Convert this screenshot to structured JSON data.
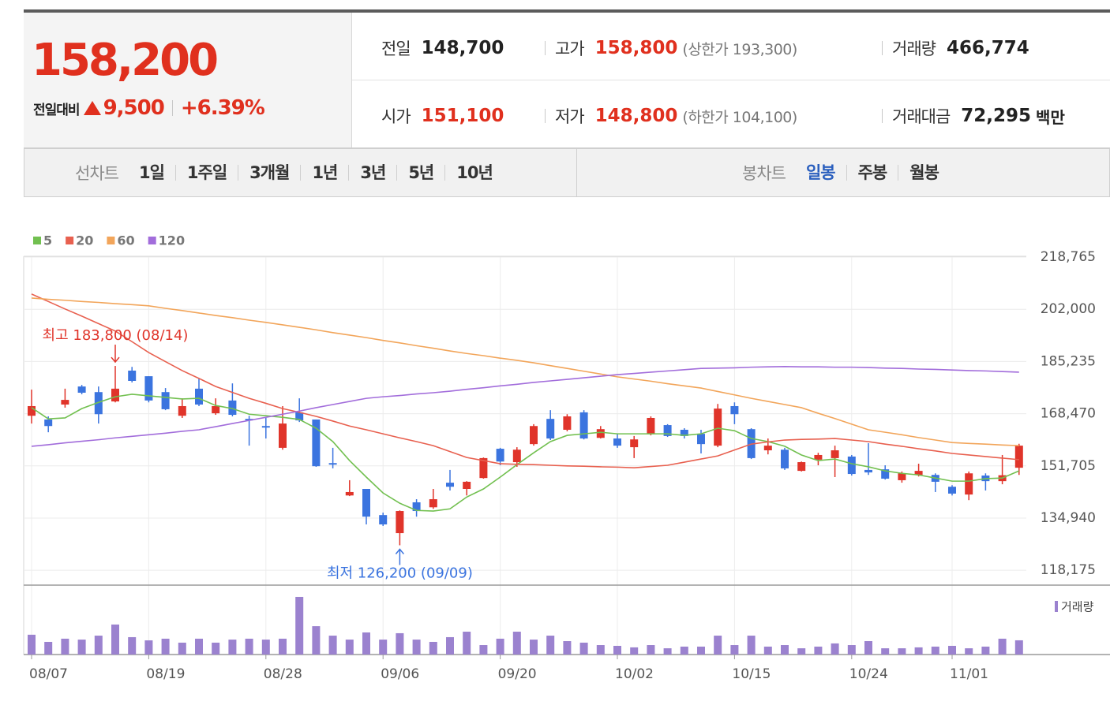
{
  "header": {
    "price": "158,200",
    "change_label": "전일대비",
    "change": "9,500",
    "change_pct": "+6.39%",
    "stats": [
      {
        "label": "전일",
        "value": "148,700",
        "color": "#222222"
      },
      {
        "label": "고가",
        "value": "158,800",
        "color": "#e0301e",
        "note": "(상한가 193,300)"
      },
      {
        "label": "거래량",
        "value": "466,774",
        "color": "#222222"
      },
      {
        "label": "시가",
        "value": "151,100",
        "color": "#e0301e"
      },
      {
        "label": "저가",
        "value": "148,800",
        "color": "#e0301e",
        "note": "(하한가 104,100)"
      },
      {
        "label": "거래대금",
        "value": "72,295",
        "color": "#222222",
        "unit": "백만"
      }
    ]
  },
  "tabs": {
    "line": {
      "label": "선차트",
      "items": [
        "1일",
        "1주일",
        "3개월",
        "1년",
        "3년",
        "5년",
        "10년"
      ]
    },
    "candle": {
      "label": "봉차트",
      "items": [
        "일봉",
        "주봉",
        "월봉"
      ],
      "active": 0
    }
  },
  "chart_data": [
    {
      "type": "candlestick",
      "categories": [
        "08/07",
        null,
        null,
        null,
        null,
        null,
        null,
        "08/19",
        null,
        null,
        null,
        null,
        null,
        null,
        "08/28",
        null,
        null,
        null,
        null,
        null,
        null,
        "09/06",
        null,
        null,
        null,
        null,
        null,
        null,
        "09/20",
        null,
        null,
        null,
        null,
        null,
        null,
        "10/02",
        null,
        null,
        null,
        null,
        null,
        null,
        "10/15",
        null,
        null,
        null,
        null,
        null,
        null,
        "10/24",
        null,
        null,
        null,
        null,
        null,
        "11/01",
        null,
        null,
        null,
        null
      ],
      "open": [
        167800,
        166600,
        171400,
        177200,
        175400,
        172400,
        182300,
        180500,
        175400,
        167800,
        176500,
        168600,
        172700,
        166800,
        164500,
        157500,
        168900,
        166600,
        152600,
        142200,
        144300,
        135900,
        130100,
        140000,
        138400,
        146300,
        144300,
        147800,
        157200,
        152900,
        158700,
        166800,
        163300,
        168900,
        160700,
        160500,
        157700,
        162000,
        164800,
        163300,
        162000,
        158200,
        170900,
        163500,
        156700,
        156900,
        150100,
        153700,
        154200,
        154700,
        150400,
        150600,
        147100,
        148800,
        148800,
        145000,
        142500,
        148600,
        146800,
        151100
      ],
      "high": [
        176200,
        167600,
        176500,
        177700,
        177200,
        183800,
        183500,
        180500,
        176700,
        173400,
        179800,
        173400,
        178200,
        167800,
        167100,
        170900,
        173400,
        166600,
        157500,
        147100,
        144300,
        136700,
        137400,
        141000,
        144300,
        150400,
        146800,
        154400,
        157500,
        157700,
        165100,
        169600,
        168300,
        169600,
        164500,
        162000,
        161300,
        167600,
        165100,
        163800,
        163300,
        171600,
        172100,
        163800,
        160500,
        157500,
        153100,
        155900,
        158200,
        155200,
        159000,
        151900,
        149900,
        152400,
        149300,
        145500,
        149900,
        149300,
        155200,
        158800
      ],
      "low": [
        165300,
        162500,
        170400,
        174700,
        165300,
        172100,
        178500,
        172100,
        169600,
        167100,
        170900,
        168100,
        167600,
        158200,
        160500,
        156900,
        165800,
        151400,
        150900,
        142000,
        132900,
        132400,
        126200,
        135400,
        137900,
        143800,
        142200,
        147600,
        151900,
        151400,
        158200,
        160000,
        162800,
        160200,
        160500,
        157500,
        154200,
        161500,
        161000,
        160500,
        155700,
        157700,
        165100,
        153900,
        155400,
        150400,
        149900,
        151900,
        148100,
        148600,
        148800,
        147300,
        146300,
        148300,
        143300,
        142200,
        140700,
        143800,
        145800,
        148800
      ],
      "close": [
        170900,
        164500,
        172900,
        175200,
        168300,
        176500,
        179000,
        172700,
        169900,
        170900,
        171400,
        170900,
        168100,
        166300,
        164000,
        165300,
        166300,
        151600,
        152100,
        143300,
        135400,
        132900,
        137200,
        137200,
        141000,
        145000,
        146600,
        154200,
        153100,
        156900,
        164500,
        160500,
        167600,
        160500,
        163500,
        158200,
        160200,
        167100,
        161300,
        161300,
        158700,
        170100,
        168300,
        154200,
        158200,
        150900,
        152900,
        155200,
        156700,
        149100,
        149600,
        147600,
        149300,
        150100,
        146600,
        142800,
        149300,
        146800,
        148700,
        158200
      ],
      "up_color": "#e0342a",
      "down_color": "#3b74df",
      "series": [
        {
          "name": "5",
          "color": "#72c050",
          "values": [
            170400,
            166800,
            167100,
            170100,
            172100,
            173900,
            174700,
            174200,
            173700,
            173200,
            173400,
            171100,
            170100,
            168300,
            167800,
            167300,
            166600,
            163800,
            159500,
            153400,
            148100,
            143000,
            139700,
            137400,
            137200,
            137900,
            141700,
            144300,
            148100,
            152100,
            155900,
            159500,
            161500,
            162000,
            162500,
            162000,
            162000,
            162000,
            162000,
            161500,
            162000,
            163800,
            163000,
            160500,
            159500,
            158000,
            155200,
            153400,
            153900,
            152400,
            151400,
            150100,
            149300,
            148800,
            147800,
            146800,
            146800,
            147600,
            147800,
            150100
          ]
        },
        {
          "name": "20",
          "color": "#e8604f",
          "values": [
            206900,
            204500,
            202100,
            199800,
            197400,
            195000,
            191600,
            188100,
            185200,
            182300,
            179800,
            177200,
            175300,
            173400,
            171800,
            170100,
            168900,
            167600,
            166100,
            164500,
            163300,
            162000,
            160700,
            159500,
            158200,
            156300,
            154400,
            153400,
            152400,
            152200,
            152100,
            151900,
            151700,
            151600,
            151400,
            151300,
            151100,
            151500,
            151900,
            152900,
            153900,
            154900,
            156800,
            158700,
            159400,
            160000,
            160200,
            160300,
            160500,
            160000,
            159500,
            158700,
            158000,
            157200,
            156500,
            155700,
            155200,
            154700,
            154200,
            153700
          ]
        },
        {
          "name": "60",
          "color": "#f2a55a",
          "values": [
            205600,
            205200,
            204900,
            204500,
            204200,
            203800,
            203500,
            203100,
            202300,
            201600,
            200800,
            200000,
            199300,
            198500,
            197800,
            197000,
            196200,
            195400,
            194500,
            193700,
            192900,
            192000,
            191200,
            190300,
            189500,
            188600,
            187800,
            187100,
            186300,
            185600,
            184800,
            183900,
            183000,
            182100,
            181200,
            180300,
            179600,
            178900,
            178100,
            177400,
            176700,
            175600,
            174500,
            173400,
            172400,
            171400,
            170400,
            168600,
            166900,
            165100,
            163300,
            162500,
            161700,
            160800,
            160000,
            159200,
            158900,
            158700,
            158400,
            158200
          ]
        },
        {
          "name": "120",
          "color": "#a26ddb",
          "values": [
            158000,
            158500,
            159100,
            159600,
            160100,
            160700,
            161200,
            161700,
            162200,
            162800,
            163300,
            164300,
            165300,
            166300,
            167300,
            168300,
            169300,
            170400,
            171400,
            172400,
            173400,
            173900,
            174300,
            174800,
            175200,
            175700,
            176300,
            176800,
            177400,
            177900,
            178500,
            179000,
            179500,
            180000,
            180500,
            181000,
            181400,
            181800,
            182200,
            182600,
            183000,
            183100,
            183200,
            183400,
            183500,
            183600,
            183500,
            183500,
            183400,
            183400,
            183300,
            183100,
            183000,
            182800,
            182700,
            182500,
            182300,
            182200,
            182000,
            181800
          ]
        }
      ],
      "ylim": [
        113400,
        218765
      ],
      "yticks": [
        {
          "value": 118175,
          "label": "118,175"
        },
        {
          "value": 134940,
          "label": "134,940"
        },
        {
          "value": 151705,
          "label": "151,705"
        },
        {
          "value": 168470,
          "label": "168,470"
        },
        {
          "value": 185235,
          "label": "185,235"
        },
        {
          "value": 202000,
          "label": "202,000"
        },
        {
          "value": 218765,
          "label": "218,765"
        }
      ],
      "grid": true,
      "legend": "top-left",
      "annotations": {
        "high": "최고 183,800 (08/14)",
        "low": "최저 126,200 (09/09)"
      }
    },
    {
      "type": "bar",
      "series": [
        {
          "name": "거래량",
          "color": "#9b82cf",
          "values": [
            650000,
            415000,
            520000,
            490000,
            620000,
            985000,
            570000,
            465000,
            520000,
            390000,
            520000,
            390000,
            490000,
            520000,
            490000,
            520000,
            1890000,
            930000,
            620000,
            490000,
            725000,
            490000,
            700000,
            490000,
            415000,
            570000,
            750000,
            310000,
            520000,
            750000,
            490000,
            620000,
            440000,
            390000,
            310000,
            285000,
            235000,
            310000,
            205000,
            260000,
            260000,
            620000,
            310000,
            620000,
            260000,
            310000,
            205000,
            260000,
            365000,
            310000,
            440000,
            205000,
            205000,
            235000,
            260000,
            285000,
            205000,
            260000,
            520000,
            466774
          ]
        }
      ],
      "ylim": [
        0,
        2200000
      ],
      "legend": "top-right"
    }
  ]
}
